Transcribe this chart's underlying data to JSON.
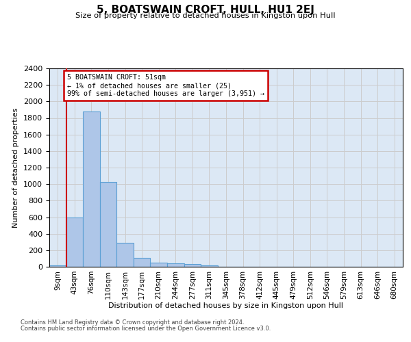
{
  "title": "5, BOATSWAIN CROFT, HULL, HU1 2EJ",
  "subtitle": "Size of property relative to detached houses in Kingston upon Hull",
  "xlabel": "Distribution of detached houses by size in Kingston upon Hull",
  "ylabel": "Number of detached properties",
  "bar_labels": [
    "9sqm",
    "43sqm",
    "76sqm",
    "110sqm",
    "143sqm",
    "177sqm",
    "210sqm",
    "244sqm",
    "277sqm",
    "311sqm",
    "345sqm",
    "378sqm",
    "412sqm",
    "445sqm",
    "479sqm",
    "512sqm",
    "546sqm",
    "579sqm",
    "613sqm",
    "646sqm",
    "680sqm"
  ],
  "bar_values": [
    20,
    600,
    1880,
    1030,
    290,
    110,
    50,
    40,
    30,
    20,
    0,
    0,
    0,
    0,
    0,
    0,
    0,
    0,
    0,
    0,
    0
  ],
  "bar_color": "#aec6e8",
  "bar_edge_color": "#5a9fd4",
  "annotation_text": "5 BOATSWAIN CROFT: 51sqm\n← 1% of detached houses are smaller (25)\n99% of semi-detached houses are larger (3,951) →",
  "annotation_box_color": "#ffffff",
  "annotation_box_edge_color": "#cc0000",
  "vline_color": "#cc0000",
  "ylim": [
    0,
    2400
  ],
  "yticks": [
    0,
    200,
    400,
    600,
    800,
    1000,
    1200,
    1400,
    1600,
    1800,
    2000,
    2200,
    2400
  ],
  "grid_color": "#cccccc",
  "bg_color": "#dce8f5",
  "footer1": "Contains HM Land Registry data © Crown copyright and database right 2024.",
  "footer2": "Contains public sector information licensed under the Open Government Licence v3.0."
}
